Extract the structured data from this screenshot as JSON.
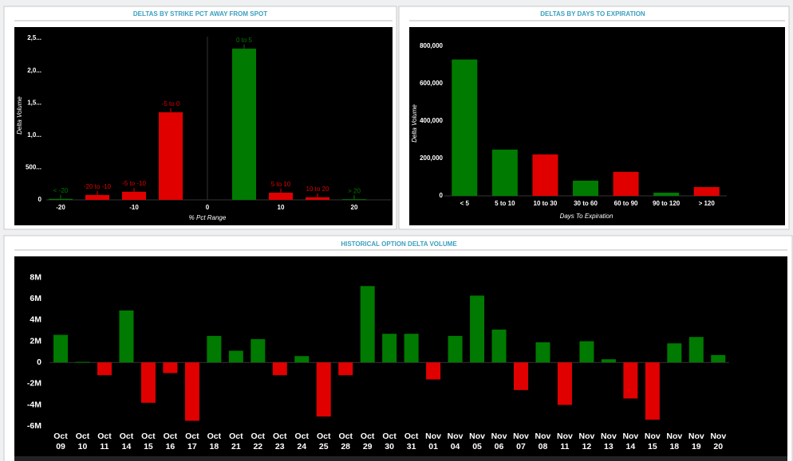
{
  "chart_data": [
    {
      "type": "bar",
      "title": "DELTAS BY STRIKE PCT AWAY FROM SPOT",
      "x_label": "% Pct Range",
      "y_label": "Delta Volume",
      "x": [
        -20,
        -15,
        -10,
        -5,
        5,
        10,
        15,
        20
      ],
      "bar_labels": [
        "< -20",
        "-20 to -10",
        "-5 to -10",
        "-5 to 0",
        "0 to 5",
        "5 to 10",
        "10 to 20",
        "> 20"
      ],
      "values": [
        15000,
        75000,
        125000,
        1355000,
        2340000,
        110000,
        40000,
        10000
      ],
      "colors": [
        "#007a00",
        "#e00000",
        "#e00000",
        "#e00000",
        "#007a00",
        "#e00000",
        "#e00000",
        "#007a00"
      ],
      "xlim": [
        -22,
        25
      ],
      "xticks": [
        -20,
        -10,
        0,
        10,
        20
      ],
      "ylim": [
        0,
        2600000
      ],
      "yticks": [
        0,
        {
          "value": 500000,
          "label": "500..."
        },
        {
          "value": 1000000,
          "label": "1,0..."
        },
        {
          "value": 1500000,
          "label": "1,5..."
        },
        {
          "value": 2000000,
          "label": "2,0..."
        },
        {
          "value": 2500000,
          "label": "2,5..."
        }
      ]
    },
    {
      "type": "bar",
      "title": "DELTAS BY DAYS TO EXPIRATION",
      "x_label": "Days To Expiration",
      "y_label": "Delta Volume",
      "categories": [
        "< 5",
        "5 to 10",
        "10 to 30",
        "30 to 60",
        "60 to 90",
        "90 to 120",
        "> 120"
      ],
      "values": [
        728000,
        247000,
        221000,
        81000,
        128000,
        17000,
        47000
      ],
      "colors": [
        "#007a00",
        "#007a00",
        "#e00000",
        "#007a00",
        "#e00000",
        "#007a00",
        "#e00000"
      ],
      "ylim": [
        0,
        850000
      ],
      "yticks": [
        0,
        {
          "value": 200000,
          "label": "200,000"
        },
        {
          "value": 400000,
          "label": "400,000"
        },
        {
          "value": 600000,
          "label": "600,000"
        },
        {
          "value": 800000,
          "label": "800,000"
        }
      ]
    },
    {
      "type": "bar",
      "title": "HISTORICAL OPTION DELTA VOLUME",
      "categories": [
        [
          "Oct",
          "09"
        ],
        [
          "Oct",
          "10"
        ],
        [
          "Oct",
          "11"
        ],
        [
          "Oct",
          "14"
        ],
        [
          "Oct",
          "15"
        ],
        [
          "Oct",
          "16"
        ],
        [
          "Oct",
          "17"
        ],
        [
          "Oct",
          "18"
        ],
        [
          "Oct",
          "21"
        ],
        [
          "Oct",
          "22"
        ],
        [
          "Oct",
          "23"
        ],
        [
          "Oct",
          "24"
        ],
        [
          "Oct",
          "25"
        ],
        [
          "Oct",
          "28"
        ],
        [
          "Oct",
          "29"
        ],
        [
          "Oct",
          "30"
        ],
        [
          "Oct",
          "31"
        ],
        [
          "Nov",
          "01"
        ],
        [
          "Nov",
          "04"
        ],
        [
          "Nov",
          "05"
        ],
        [
          "Nov",
          "06"
        ],
        [
          "Nov",
          "07"
        ],
        [
          "Nov",
          "08"
        ],
        [
          "Nov",
          "11"
        ],
        [
          "Nov",
          "12"
        ],
        [
          "Nov",
          "13"
        ],
        [
          "Nov",
          "14"
        ],
        [
          "Nov",
          "15"
        ],
        [
          "Nov",
          "18"
        ],
        [
          "Nov",
          "19"
        ],
        [
          "Nov",
          "20"
        ]
      ],
      "values": [
        2600000,
        50000,
        -1200000,
        4900000,
        -3800000,
        -1000000,
        -5500000,
        2500000,
        1100000,
        2200000,
        -1200000,
        600000,
        -5100000,
        -1200000,
        7200000,
        2700000,
        2700000,
        -1600000,
        2500000,
        6300000,
        3100000,
        -2600000,
        1900000,
        -4000000,
        2000000,
        300000,
        -3400000,
        -5400000,
        1800000,
        2400000,
        700000
      ],
      "positive_color": "#007a00",
      "negative_color": "#e00000",
      "ylim": [
        -6500000,
        8800000
      ],
      "yticks": [
        {
          "value": -6000000,
          "label": "-6M"
        },
        {
          "value": -4000000,
          "label": "-4M"
        },
        {
          "value": -2000000,
          "label": "-2M"
        },
        0,
        {
          "value": 2000000,
          "label": "2M"
        },
        {
          "value": 4000000,
          "label": "4M"
        },
        {
          "value": 6000000,
          "label": "6M"
        },
        {
          "value": 8000000,
          "label": "8M"
        }
      ]
    }
  ]
}
